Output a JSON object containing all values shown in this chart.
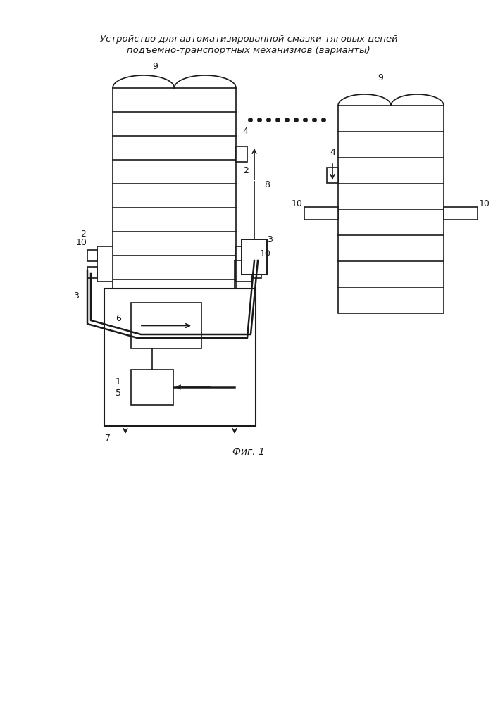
{
  "title_line1": "Устройство для автоматизированной смазки тяговых цепей",
  "title_line2": "подъемно-транспортных механизмов (варианты)",
  "fig_label": "Фиг. 1",
  "bg_color": "#ffffff",
  "line_color": "#1a1a1a"
}
